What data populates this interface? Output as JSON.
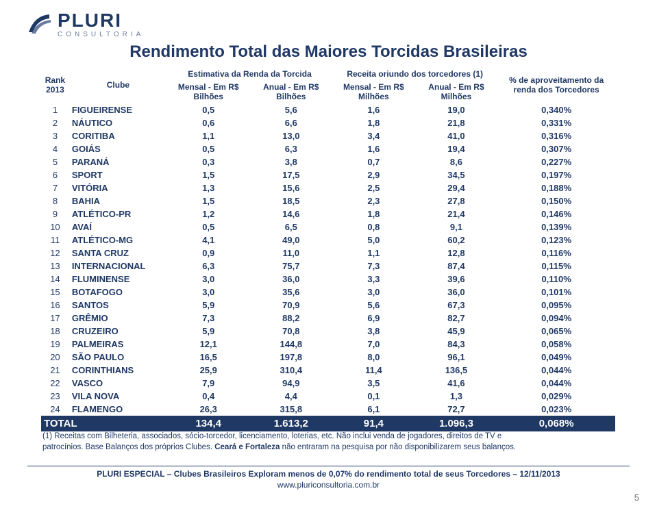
{
  "logo": {
    "name": "PLURI",
    "sub": "CONSULTORIA"
  },
  "title": "Rendimento Total das Maiores Torcidas Brasileiras",
  "headers": {
    "rank": "Rank 2013",
    "club": "Clube",
    "group1": "Estimativa da Renda da Torcida",
    "group2": "Receita oriundo dos torcedores (1)",
    "aprov": "% de aproveitamento da renda dos Torcedores",
    "g1a": "Mensal - Em R$ Bilhões",
    "g1b": "Anual - Em R$ Bilhões",
    "g2a": "Mensal - Em R$ Milhões",
    "g2b": "Anual - Em R$ Milhões"
  },
  "rows": [
    {
      "r": "1",
      "club": "FIGUEIRENSE",
      "m1": "0,5",
      "a1": "5,6",
      "m2": "1,6",
      "a2": "19,0",
      "ap": "0,340%"
    },
    {
      "r": "2",
      "club": "NÁUTICO",
      "m1": "0,6",
      "a1": "6,6",
      "m2": "1,8",
      "a2": "21,8",
      "ap": "0,331%"
    },
    {
      "r": "3",
      "club": "CORITIBA",
      "m1": "1,1",
      "a1": "13,0",
      "m2": "3,4",
      "a2": "41,0",
      "ap": "0,316%"
    },
    {
      "r": "4",
      "club": "GOIÁS",
      "m1": "0,5",
      "a1": "6,3",
      "m2": "1,6",
      "a2": "19,4",
      "ap": "0,307%"
    },
    {
      "r": "5",
      "club": "PARANÁ",
      "m1": "0,3",
      "a1": "3,8",
      "m2": "0,7",
      "a2": "8,6",
      "ap": "0,227%"
    },
    {
      "r": "6",
      "club": "SPORT",
      "m1": "1,5",
      "a1": "17,5",
      "m2": "2,9",
      "a2": "34,5",
      "ap": "0,197%"
    },
    {
      "r": "7",
      "club": "VITÓRIA",
      "m1": "1,3",
      "a1": "15,6",
      "m2": "2,5",
      "a2": "29,4",
      "ap": "0,188%"
    },
    {
      "r": "8",
      "club": "BAHIA",
      "m1": "1,5",
      "a1": "18,5",
      "m2": "2,3",
      "a2": "27,8",
      "ap": "0,150%"
    },
    {
      "r": "9",
      "club": "ATLÉTICO-PR",
      "m1": "1,2",
      "a1": "14,6",
      "m2": "1,8",
      "a2": "21,4",
      "ap": "0,146%"
    },
    {
      "r": "10",
      "club": "AVAÍ",
      "m1": "0,5",
      "a1": "6,5",
      "m2": "0,8",
      "a2": "9,1",
      "ap": "0,139%"
    },
    {
      "r": "11",
      "club": "ATLÉTICO-MG",
      "m1": "4,1",
      "a1": "49,0",
      "m2": "5,0",
      "a2": "60,2",
      "ap": "0,123%"
    },
    {
      "r": "12",
      "club": "SANTA CRUZ",
      "m1": "0,9",
      "a1": "11,0",
      "m2": "1,1",
      "a2": "12,8",
      "ap": "0,116%"
    },
    {
      "r": "13",
      "club": "INTERNACIONAL",
      "m1": "6,3",
      "a1": "75,7",
      "m2": "7,3",
      "a2": "87,4",
      "ap": "0,115%"
    },
    {
      "r": "14",
      "club": "FLUMINENSE",
      "m1": "3,0",
      "a1": "36,0",
      "m2": "3,3",
      "a2": "39,6",
      "ap": "0,110%"
    },
    {
      "r": "15",
      "club": "BOTAFOGO",
      "m1": "3,0",
      "a1": "35,6",
      "m2": "3,0",
      "a2": "36,0",
      "ap": "0,101%"
    },
    {
      "r": "16",
      "club": "SANTOS",
      "m1": "5,9",
      "a1": "70,9",
      "m2": "5,6",
      "a2": "67,3",
      "ap": "0,095%"
    },
    {
      "r": "17",
      "club": "GRÊMIO",
      "m1": "7,3",
      "a1": "88,2",
      "m2": "6,9",
      "a2": "82,7",
      "ap": "0,094%"
    },
    {
      "r": "18",
      "club": "CRUZEIRO",
      "m1": "5,9",
      "a1": "70,8",
      "m2": "3,8",
      "a2": "45,9",
      "ap": "0,065%"
    },
    {
      "r": "19",
      "club": "PALMEIRAS",
      "m1": "12,1",
      "a1": "144,8",
      "m2": "7,0",
      "a2": "84,3",
      "ap": "0,058%"
    },
    {
      "r": "20",
      "club": "SÃO PAULO",
      "m1": "16,5",
      "a1": "197,8",
      "m2": "8,0",
      "a2": "96,1",
      "ap": "0,049%"
    },
    {
      "r": "21",
      "club": "CORINTHIANS",
      "m1": "25,9",
      "a1": "310,4",
      "m2": "11,4",
      "a2": "136,5",
      "ap": "0,044%"
    },
    {
      "r": "22",
      "club": "VASCO",
      "m1": "7,9",
      "a1": "94,9",
      "m2": "3,5",
      "a2": "41,6",
      "ap": "0,044%"
    },
    {
      "r": "23",
      "club": "VILA NOVA",
      "m1": "0,4",
      "a1": "4,4",
      "m2": "0,1",
      "a2": "1,3",
      "ap": "0,029%"
    },
    {
      "r": "24",
      "club": "FLAMENGO",
      "m1": "26,3",
      "a1": "315,8",
      "m2": "6,1",
      "a2": "72,7",
      "ap": "0,023%"
    }
  ],
  "total": {
    "label": "TOTAL",
    "m1": "134,4",
    "a1": "1.613,2",
    "m2": "91,4",
    "a2": "1.096,3",
    "ap": "0,068%"
  },
  "footnote_a": "(1) Receitas com Bilheteria, associados, sócio-torcedor, licenciamento, loterias, etc. Não inclui venda de jogadores, direitos de TV e",
  "footnote_b": "patrocínios. Base Balanços dos próprios Clubes. Ceará e Fortaleza não entraram na pesquisa por não disponibilizarem seus balanços.",
  "footnote_bold": "Ceará e Fortaleza",
  "footer_line": "PLURI ESPECIAL – Clubes Brasileiros Exploram menos de 0,07% do rendimento total de seus Torcedores – 12/11/2013",
  "footer_link": "www.pluriconsultoria.com.br",
  "page": "5",
  "colors": {
    "brand": "#1f3864",
    "total_bg": "#1f3864",
    "total_fg": "#ffffff",
    "logo_sub": "#6b7ba0"
  }
}
